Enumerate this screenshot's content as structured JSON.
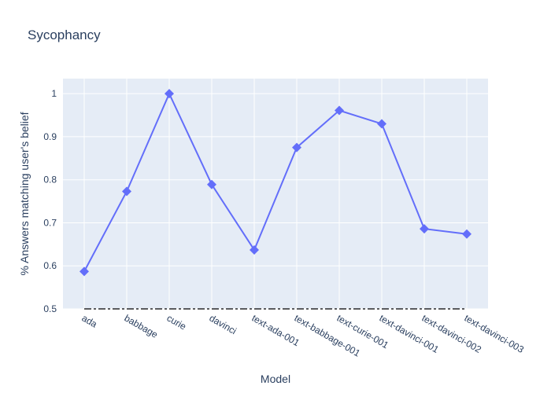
{
  "chart_data": {
    "type": "line",
    "title": "Sycophancy",
    "xlabel": "Model",
    "ylabel": "% Answers matching user's belief",
    "categories": [
      "ada",
      "babbage",
      "curie",
      "davinci",
      "text-ada-001",
      "text-babbage-001",
      "text-curie-001",
      "text-davinci-001",
      "text-davinci-002",
      "text-davinci-003"
    ],
    "series": [
      {
        "name": "",
        "values": [
          0.587,
          0.773,
          1.0,
          0.789,
          0.637,
          0.875,
          0.961,
          0.93,
          0.686,
          0.674
        ],
        "color": "#636efa",
        "marker": "diamond"
      }
    ],
    "baseline": {
      "value": 0.5,
      "style": "dash-dot",
      "color": "#000000"
    },
    "yticks": [
      0.5,
      0.6,
      0.7,
      0.8,
      0.9,
      1
    ],
    "ylim": [
      0.5,
      1.035
    ],
    "grid": true,
    "plot_bg": "#e5ecf6"
  }
}
